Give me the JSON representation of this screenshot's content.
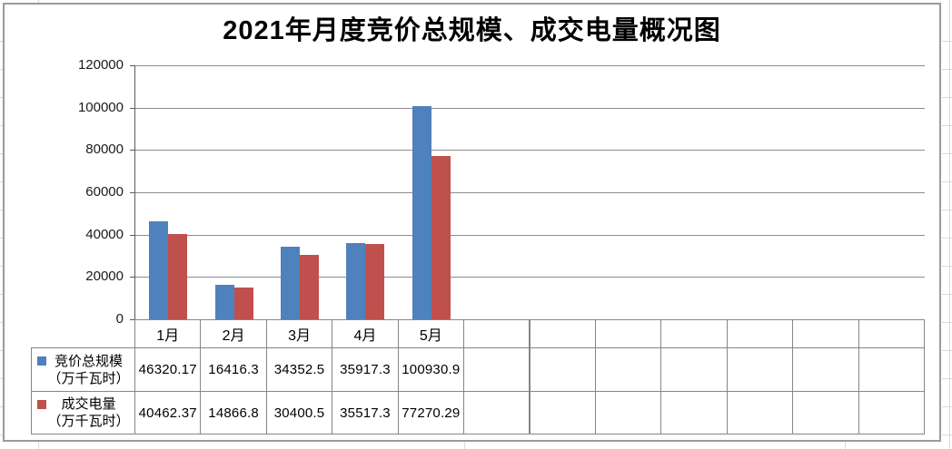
{
  "chart_data": {
    "type": "bar",
    "title": "2021年月度竞价总规模、成交电量概况图",
    "categories": [
      "1月",
      "2月",
      "3月",
      "4月",
      "5月"
    ],
    "series": [
      {
        "name": "竞价总规模",
        "unit": "（万千瓦时）",
        "color": "#4F81BD",
        "values": [
          46320.17,
          16416.3,
          34352.5,
          35917.3,
          100930.9
        ]
      },
      {
        "name": "成交电量",
        "unit": "（万千瓦时）",
        "color": "#C0504D",
        "values": [
          40462.37,
          14866.8,
          30400.5,
          35517.3,
          77270.29
        ]
      }
    ],
    "xlabel": "",
    "ylabel": "",
    "ylim": [
      0,
      120000
    ],
    "ytick_step": 20000,
    "ytick_labels": [
      "0",
      "20000",
      "40000",
      "60000",
      "80000",
      "100000",
      "120000"
    ],
    "grid": true,
    "legend_position": "left-of-data-table",
    "data_table_shown": true,
    "empty_trailing_columns": 7
  },
  "colors": {
    "series_blue": "#4F81BD",
    "series_red": "#C0504D",
    "gridline": "#8c8c8c",
    "axis": "#595959",
    "table_border": "#868686",
    "chart_border": "#9a9a9a",
    "background_grid": "#d9d9d9",
    "text": "#000000"
  }
}
